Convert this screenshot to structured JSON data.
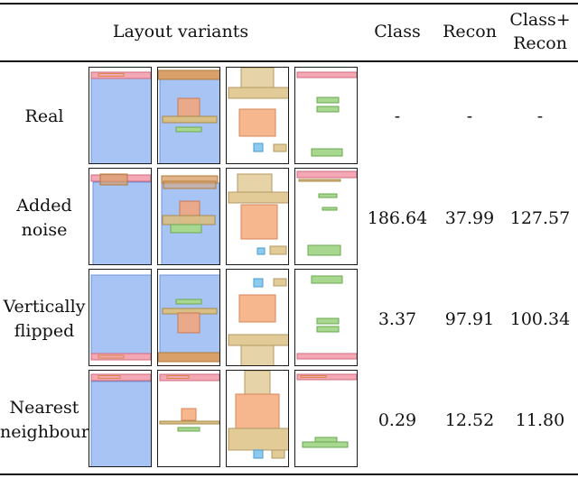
{
  "header": {
    "layout_variants": "Layout variants",
    "col_class": "Class",
    "col_recon": "Recon",
    "col_classrecon_l1": "Class+",
    "col_classrecon_l2": "Recon"
  },
  "rows": [
    {
      "label_l1": "Real",
      "label_l2": "",
      "class": "-",
      "recon": "-",
      "class_recon": "-"
    },
    {
      "label_l1": "Added",
      "label_l2": "noise",
      "class": "186.64",
      "recon": "37.99",
      "class_recon": "127.57"
    },
    {
      "label_l1": "Vertically",
      "label_l2": "flipped",
      "class": "3.37",
      "recon": "97.91",
      "class_recon": "100.34"
    },
    {
      "label_l1": "Nearest",
      "label_l2": "neighbour",
      "class": "0.29",
      "recon": "12.52",
      "class_recon": "11.80"
    }
  ],
  "colors": {
    "blue": "#a8c4f5",
    "pink": "#f4a7b4",
    "tan": "#d8bf86",
    "orange": "#f6b78f",
    "green": "#a8d88f",
    "cyan": "#8ccaf0"
  }
}
